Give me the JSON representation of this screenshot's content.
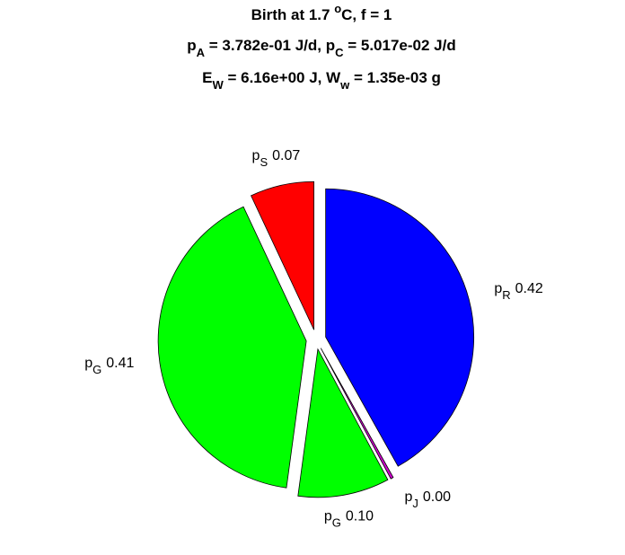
{
  "chart_data": {
    "type": "pie",
    "title": [
      [
        {
          "text": "Birth at 1.7 "
        },
        {
          "text": "o",
          "shift": "sup"
        },
        {
          "text": "C, f = 1"
        }
      ],
      [
        {
          "text": "p"
        },
        {
          "text": "A",
          "shift": "sub"
        },
        {
          "text": " = 3.782e-01 J/d, p"
        },
        {
          "text": "C",
          "shift": "sub"
        },
        {
          "text": " = 5.017e-02 J/d"
        }
      ],
      [
        {
          "text": "E"
        },
        {
          "text": "W",
          "shift": "sub"
        },
        {
          "text": " = 6.16e+00 J, W"
        },
        {
          "text": "w",
          "shift": "sub"
        },
        {
          "text": " = 1.35e-03 g"
        }
      ]
    ],
    "categories": [
      {
        "text": "p",
        "sub": "R"
      },
      {
        "text": "p",
        "sub": "J"
      },
      {
        "text": "p",
        "sub": "G"
      },
      {
        "text": "p",
        "sub": "G"
      },
      {
        "text": "p",
        "sub": "S"
      }
    ],
    "values": [
      0.42,
      0.003,
      0.1,
      0.41,
      0.07
    ],
    "value_labels": [
      "0.42",
      "0.00",
      "0.10",
      "0.41",
      "0.07"
    ],
    "colors": [
      "#0000ff",
      "#cc00cc",
      "#00ff00",
      "#00ff00",
      "#ff0000"
    ],
    "exploded": true
  }
}
